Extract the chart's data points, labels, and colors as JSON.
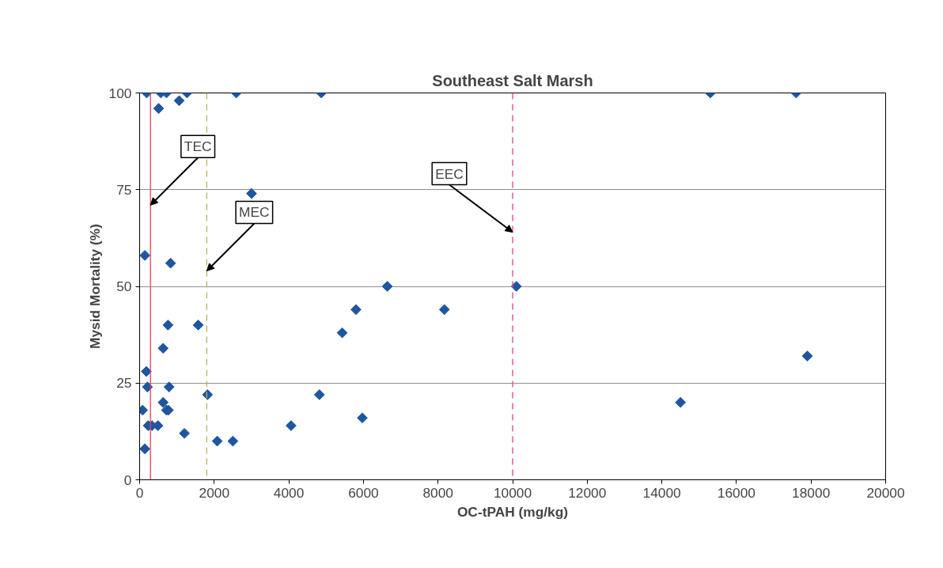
{
  "chart_data": {
    "type": "scatter",
    "title": "Southeast Salt Marsh",
    "xlabel": "OC-tPAH (mg/kg)",
    "ylabel": "Mysid Mortality (%)",
    "x": [
      190,
      570,
      720,
      1270,
      2590,
      4870,
      1060,
      510,
      3000,
      140,
      830,
      760,
      1570,
      630,
      180,
      210,
      790,
      1820,
      630,
      720,
      770,
      80,
      230,
      330,
      490,
      1200,
      140,
      2080,
      2500,
      4060,
      4820,
      5970,
      5430,
      5800,
      6640,
      8170,
      10100,
      15300,
      17600,
      14500,
      17900
    ],
    "series": [
      {
        "color": "#1f56a0",
        "values": [
          100,
          100,
          100,
          100,
          100,
          100,
          98,
          96,
          74,
          58,
          56,
          40,
          40,
          34,
          28,
          24,
          24,
          22,
          20,
          18,
          18,
          18,
          14,
          14,
          14,
          12,
          8,
          10,
          10,
          14,
          22,
          16,
          38,
          44,
          50,
          44,
          50,
          100,
          100,
          20,
          32
        ]
      }
    ],
    "xlim": [
      0,
      20000
    ],
    "ylim": [
      0,
      100
    ],
    "xticks": [
      0,
      2000,
      4000,
      6000,
      8000,
      10000,
      12000,
      14000,
      16000,
      18000,
      20000
    ],
    "yticks": [
      0,
      25,
      50,
      75,
      100
    ],
    "grid": "y",
    "marker": "diamond",
    "ref_lines": [
      {
        "axis": "x",
        "value": 290,
        "color": "#e8405a",
        "line_style": "solid"
      },
      {
        "axis": "x",
        "value": 1800,
        "color": "#b5b55a",
        "line_style": "dashed"
      },
      {
        "axis": "x",
        "value": 10000,
        "color": "#e0408a",
        "line_style": "dashed"
      }
    ],
    "annotations": [
      {
        "text": "TEC",
        "x": 290,
        "y": 71
      },
      {
        "text": "MEC",
        "x": 1800,
        "y": 54
      },
      {
        "text": "EEC",
        "x": 10000,
        "y": 64
      }
    ]
  }
}
